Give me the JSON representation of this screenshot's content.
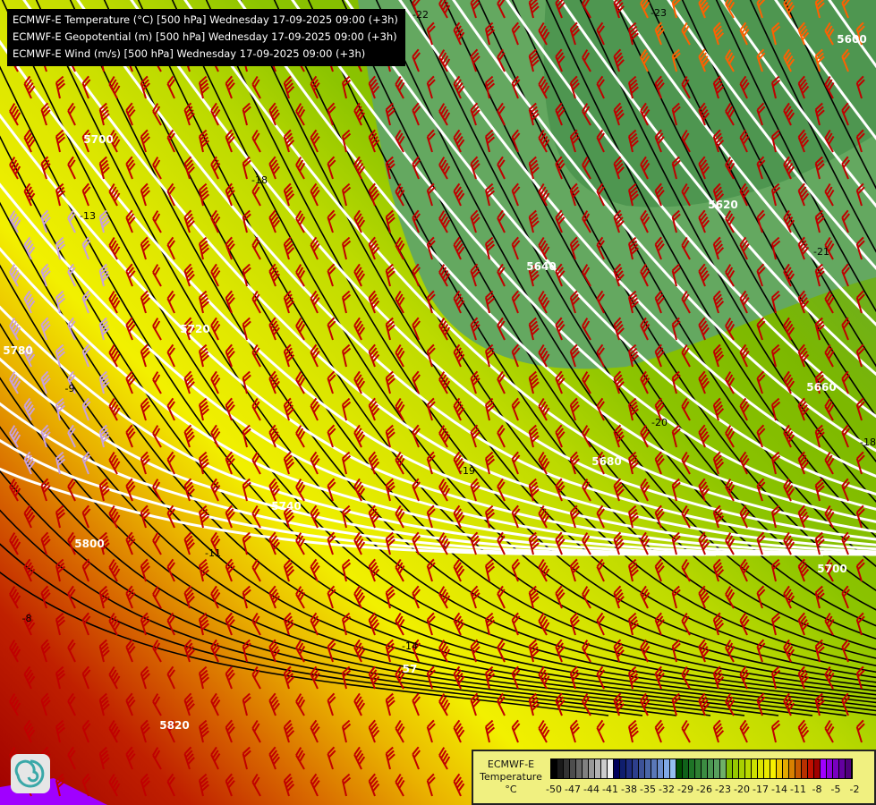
{
  "header": {
    "lines": [
      "ECMWF-E Temperature (°C) [500 hPa] Wednesday 17-09-2025 09:00 (+3h)",
      "ECMWF-E Geopotential (m) [500 hPa] Wednesday 17-09-2025 09:00 (+3h)",
      "ECMWF-E Wind (m/s) [500 hPa] Wednesday 17-09-2025 09:00 (+3h)"
    ]
  },
  "geopotential_labels": [
    "5600",
    "5620",
    "5640",
    "5660",
    "5680",
    "5700",
    "5700",
    "5720",
    "5740",
    "57",
    "5780",
    "5800",
    "5820"
  ],
  "temperature_labels": [
    "-22",
    "-23",
    "-21",
    "-20",
    "-19",
    "-18",
    "-18",
    "-14",
    "-13",
    "-11",
    "-9",
    "-8"
  ],
  "legend": {
    "title_lines": [
      "ECMWF-E",
      "Temperature",
      "°C"
    ],
    "ticks": [
      "-50",
      "-47",
      "-44",
      "-41",
      "-38",
      "-35",
      "-32",
      "-29",
      "-26",
      "-23",
      "-20",
      "-17",
      "-14",
      "-11",
      "-8",
      "-5",
      "-2"
    ],
    "colors": [
      "#000000",
      "#1a1a1a",
      "#333333",
      "#4d4d4d",
      "#666666",
      "#808080",
      "#999999",
      "#b3b3b3",
      "#cccccc",
      "#f0f0f0",
      "#00005a",
      "#0f1e6e",
      "#1e2d80",
      "#2d3f8c",
      "#3c5298",
      "#4a66a8",
      "#5a78b8",
      "#6a8ccc",
      "#80a8e6",
      "#96c0f0",
      "#005000",
      "#10621a",
      "#1e7426",
      "#2e8032",
      "#3c8c42",
      "#4a9650",
      "#58a05e",
      "#6eb068",
      "#82be00",
      "#96c800",
      "#a8d000",
      "#bada00",
      "#cce000",
      "#dce400",
      "#eaea00",
      "#f8f000",
      "#f0c800",
      "#e4aa00",
      "#d88000",
      "#c85800",
      "#b83000",
      "#c01000",
      "#a00000",
      "#a000ff",
      "#8c00dc",
      "#7800c0",
      "#6400a0",
      "#50007c"
    ],
    "logo": "ECMWF-E"
  },
  "colors": {
    "isotherm": "#000000",
    "geopotential": "#ffffff",
    "wind_barb": "#c00000",
    "wind_barb_cold": "#c8a0dc",
    "wind_barb_strong": "#ff6000",
    "borders": "#f0c890",
    "rivers": "#3c78c8"
  }
}
